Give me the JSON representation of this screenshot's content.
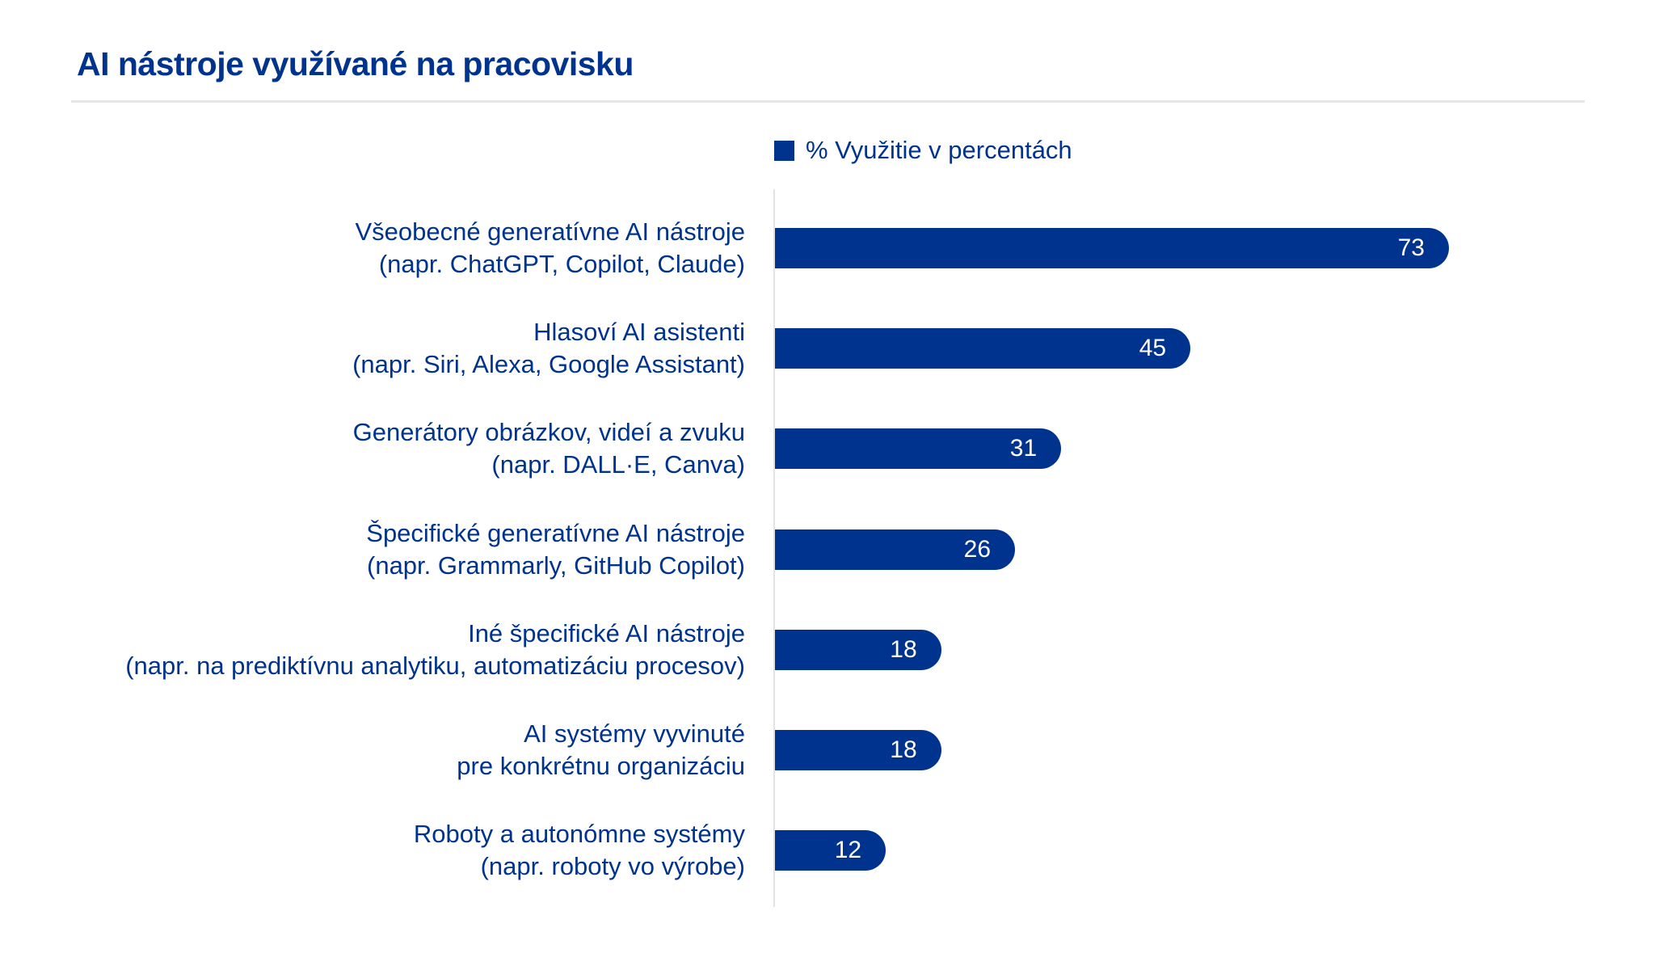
{
  "chart_data": {
    "type": "bar",
    "orientation": "horizontal",
    "title": "AI nástroje využívané na pracovisku",
    "legend": {
      "label": "% Využitie v percentách",
      "placement": "top"
    },
    "categories": [
      [
        "Všeobecné generatívne AI nástroje",
        "(napr. ChatGPT, Copilot, Claude)"
      ],
      [
        "Hlasoví AI asistenti",
        "(napr. Siri, Alexa, Google Assistant)"
      ],
      [
        "Generátory obrázkov, videí a zvuku",
        "(napr. DALL·E, Canva)"
      ],
      [
        "Špecifické generatívne AI nástroje",
        "(napr. Grammarly, GitHub Copilot)"
      ],
      [
        "Iné špecifické AI nástroje",
        "(napr. na prediktívnu analytiku, automatizáciu procesov)"
      ],
      [
        "AI systémy vyvinuté",
        "pre konkrétnu organizáciu"
      ],
      [
        "Roboty a autonómne systémy",
        "(napr. roboty vo výrobe)"
      ]
    ],
    "values": [
      73,
      45,
      31,
      26,
      18,
      18,
      12
    ],
    "xlim": [
      0,
      100
    ],
    "grid": false,
    "colors": {
      "bar": "#00338D",
      "text": "#00338D",
      "value_label": "#FFFFFF"
    }
  }
}
